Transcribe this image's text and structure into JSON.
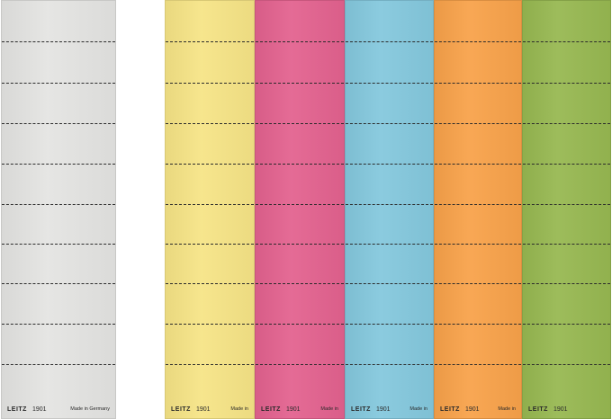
{
  "footer": {
    "brand": "LEITZ",
    "model": "1901",
    "made_gray": "Made in Germany",
    "made_short": "Made in"
  },
  "strips": [
    {
      "id": "gray",
      "color": "#e4e4e2"
    },
    {
      "id": "yellow",
      "color": "#f6e486"
    },
    {
      "id": "pink",
      "color": "#e3628f"
    },
    {
      "id": "blue",
      "color": "#84c8dd"
    },
    {
      "id": "orange",
      "color": "#f8a24a"
    },
    {
      "id": "green",
      "color": "#97b851"
    }
  ]
}
